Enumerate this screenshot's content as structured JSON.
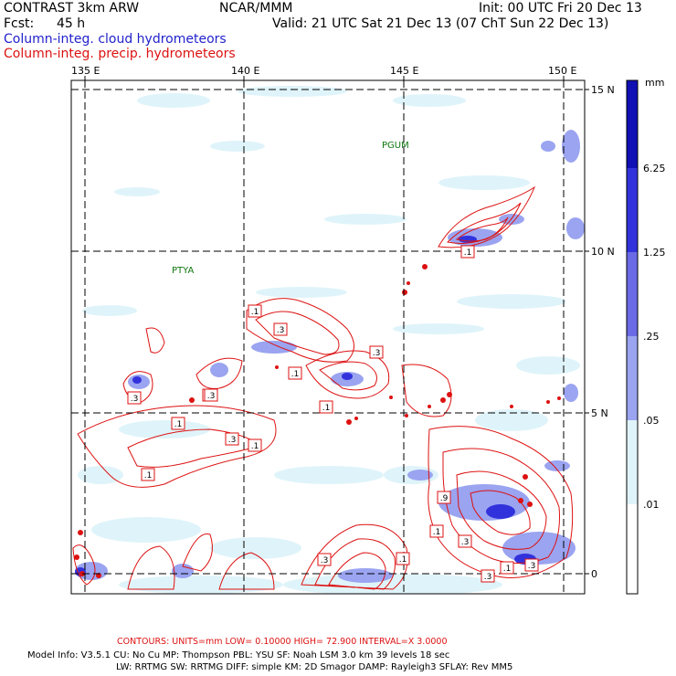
{
  "header": {
    "model": "CONTRAST  3km ARW",
    "org": "NCAR/MMM",
    "init": "Init: 00 UTC Fri 20 Dec 13",
    "fcst_label": "Fcst:",
    "fcst_value": "45 h",
    "valid": "Valid: 21 UTC Sat 21 Dec 13 (07 ChT Sun 22 Dec 13)",
    "field_cloud": "Column-integ. cloud hydrometeors",
    "field_precip": "Column-integ. precip. hydrometeors"
  },
  "colors": {
    "cloud_field": "#2222cc",
    "precip_contour": "#dd1111",
    "light": "#dff4fa",
    "band_05": "#b8e4f4",
    "band_25": "#9aa4f0",
    "band_125": "#6a6ae6",
    "band_625": "#3232dc",
    "band_max": "#1010b4"
  },
  "map": {
    "lon_labels": [
      "135 E",
      "140 E",
      "145 E",
      "150 E"
    ],
    "lat_labels": [
      "15 N",
      "10 N",
      "5 N",
      "0"
    ],
    "stations": [
      "PGUM",
      "PTYA"
    ],
    "contour_labels": [
      ".3",
      ".1",
      ".3",
      ".1",
      ".1",
      ".3",
      ".1",
      ".1",
      ".1",
      ".3",
      ".1",
      ".3",
      ".1",
      ".9",
      ".1",
      ".3",
      ".3",
      ".1",
      ".3",
      ".1",
      ".3"
    ]
  },
  "colorbar": {
    "unit": "mm",
    "levels": [
      "6.25",
      "1.25",
      ".25",
      ".05",
      ".01"
    ]
  },
  "footer": {
    "contours": "CONTOURS:  UNITS=mm  LOW= 0.10000      HIGH=  72.900      INTERVAL=X  3.0000",
    "model_info": "Model Info: V3.5.1     CU: No Cu      MP: Thompson     PBL: YSU       SF: Noah LSM     3.0 km   39 levels    18 sec",
    "physics": "LW: RRTMG    SW: RRTMG   DIFF: simple KM: 2D Smagor DAMP: Rayleigh3  SFLAY: Rev MM5"
  }
}
